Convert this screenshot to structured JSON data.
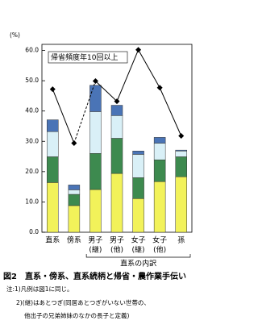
{
  "chart_data": {
    "type": "bar",
    "y_label": "(%)",
    "categories": [
      "直系",
      "傍系",
      "男子",
      "男子",
      "女子",
      "女子",
      "孫"
    ],
    "category_notes": [
      null,
      null,
      "(継)",
      "(他)",
      "(継)",
      "(他)",
      null
    ],
    "group_label": "直系の内訳",
    "stacked": true,
    "series": [
      {
        "color": "#f2f25a",
        "values": [
          16.4,
          8.8,
          14.1,
          19.4,
          11.1,
          16.7,
          18.3
        ]
      },
      {
        "color": "#3d8a4f",
        "values": [
          8.5,
          3.7,
          11.9,
          11.6,
          6.9,
          7.2,
          6.6
        ]
      },
      {
        "color": "#d9f0f7",
        "values": [
          8.3,
          1.5,
          13.8,
          7.5,
          7.7,
          5.5,
          1.9
        ]
      },
      {
        "color": "#4a74b6",
        "values": [
          3.9,
          1.6,
          8.7,
          3.4,
          1.1,
          1.9,
          0.3
        ]
      }
    ],
    "line": {
      "name": "帰省頻度年10回以上",
      "color": "#000000",
      "values": [
        47.2,
        29.4,
        49.9,
        43.2,
        60.2,
        47.7,
        31.8
      ],
      "dashed_segments": [
        1
      ]
    },
    "ylim": [
      0,
      62
    ],
    "yticks": [
      {
        "value": 0,
        "label": "0.0"
      },
      {
        "value": 10,
        "label": "10.0"
      },
      {
        "value": 20,
        "label": "20.0"
      },
      {
        "value": 30,
        "label": "30.0"
      },
      {
        "value": 40,
        "label": "40.0"
      },
      {
        "value": 50,
        "label": "50.0"
      },
      {
        "value": 60,
        "label": "60.0"
      }
    ],
    "caption": "図2　直系・傍系、直系続柄と帰省・農作業手伝い",
    "notes": [
      "注:1)凡例は図1に同じ。",
      "2)(継)はあとつぎ(同居あとつぎがいない世帯の、",
      "他出子の兄弟姉妹のなかの長子と定義)"
    ]
  }
}
